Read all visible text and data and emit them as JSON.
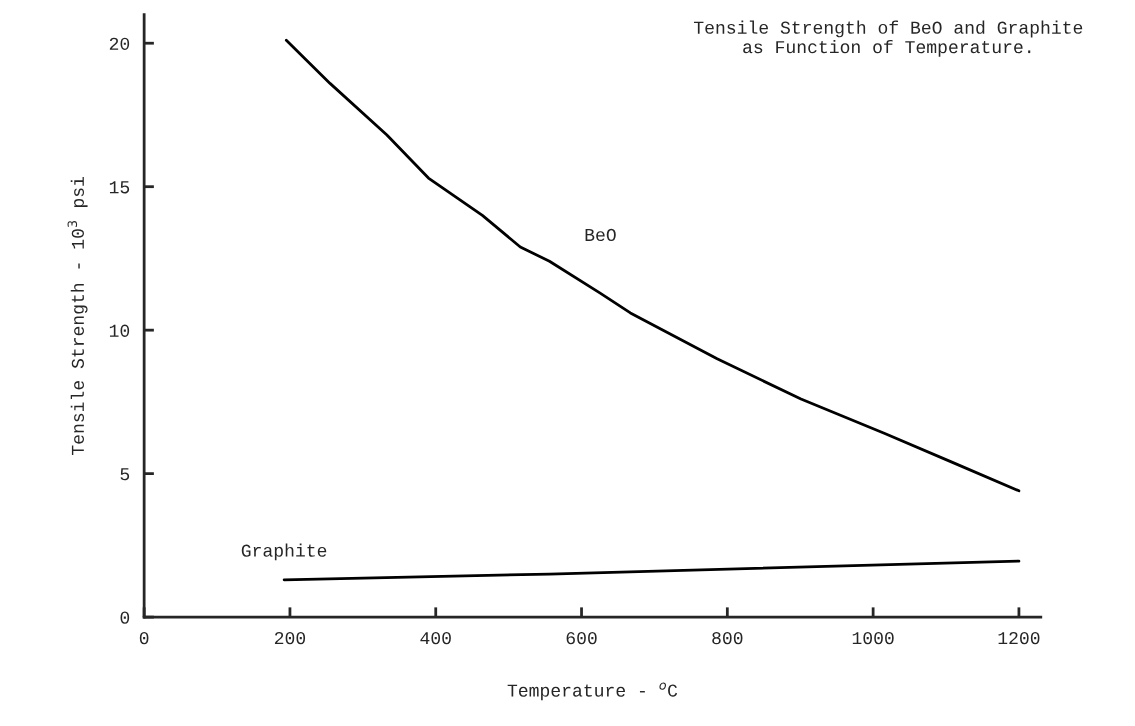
{
  "chart_data": {
    "type": "line",
    "title": "Tensile Strength of BeO and Graphite\nas Function of Temperature.",
    "xlabel": "Temperature - $^{o}$C",
    "ylabel": "Tensile Strength - 10$^{3}$ psi",
    "series": [
      {
        "name": "BeO",
        "color": "#000000",
        "x": [
          195,
          255,
          333,
          390,
          464,
          516,
          556,
          625,
          667,
          786,
          901,
          1016,
          1108,
          1200
        ],
        "values": [
          20.1,
          18.6,
          16.8,
          15.3,
          14.0,
          12.9,
          12.4,
          11.3,
          10.6,
          9.0,
          7.6,
          6.4,
          5.4,
          4.4
        ]
      },
      {
        "name": "Graphite",
        "color": "#000000",
        "x": [
          192,
          556,
          1200
        ],
        "values": [
          1.3,
          1.5,
          1.95
        ]
      }
    ],
    "xlim": [
      0,
      1230
    ],
    "ylim": [
      0,
      21
    ],
    "xticks": [
      0,
      200,
      400,
      600,
      800,
      1000,
      1200
    ],
    "yticks": [
      0,
      5,
      10,
      15,
      20
    ],
    "grid": false,
    "legend": false,
    "marker": "none",
    "line_style": "solid"
  }
}
